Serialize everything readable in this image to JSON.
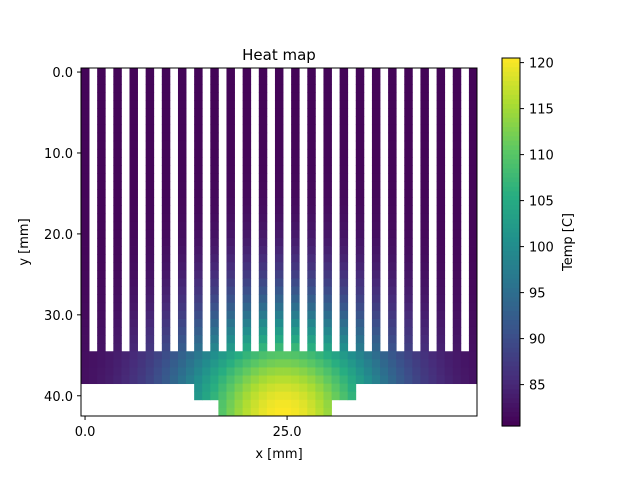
{
  "chart_data": {
    "type": "heatmap",
    "title": "Heat map",
    "xlabel": "x [mm]",
    "ylabel": "y [mm]",
    "xlim": [
      -0.5,
      48.5
    ],
    "ylim": [
      42.5,
      -0.5
    ],
    "x_ticks": [
      0.0,
      25.0
    ],
    "x_tick_labels": [
      "0.0",
      "25.0"
    ],
    "y_ticks": [
      0.0,
      10.0,
      20.0,
      30.0,
      40.0
    ],
    "y_tick_labels": [
      "0.0",
      "10.0",
      "20.0",
      "30.0",
      "40.0"
    ],
    "colorbar": {
      "label": "Temp [C]",
      "range": [
        80.5,
        120.5
      ],
      "ticks": [
        85,
        90,
        95,
        100,
        105,
        110,
        115,
        120
      ],
      "tick_labels": [
        "85",
        "90",
        "95",
        "100",
        "105",
        "110",
        "115",
        "120"
      ],
      "colormap": "viridis"
    },
    "geometry": {
      "fins": {
        "count": 25,
        "width_mm": 1,
        "gap_mm": 1,
        "y_range": [
          0,
          34.5
        ]
      },
      "base_plate": {
        "x_range": [
          -0.5,
          48.5
        ],
        "y_range": [
          34.5,
          38.5
        ]
      },
      "step": {
        "x_range": [
          14,
          34
        ],
        "y_range": [
          38.5,
          40.5
        ]
      },
      "source_block": {
        "x_range": [
          17,
          31
        ],
        "y_range": [
          40.5,
          42.5
        ]
      }
    },
    "temperature_model": {
      "max": 120.5,
      "min": 81.0,
      "hotspot_center": [
        24.5,
        42.5
      ]
    },
    "grid": false,
    "legend": "colorbar-right"
  }
}
